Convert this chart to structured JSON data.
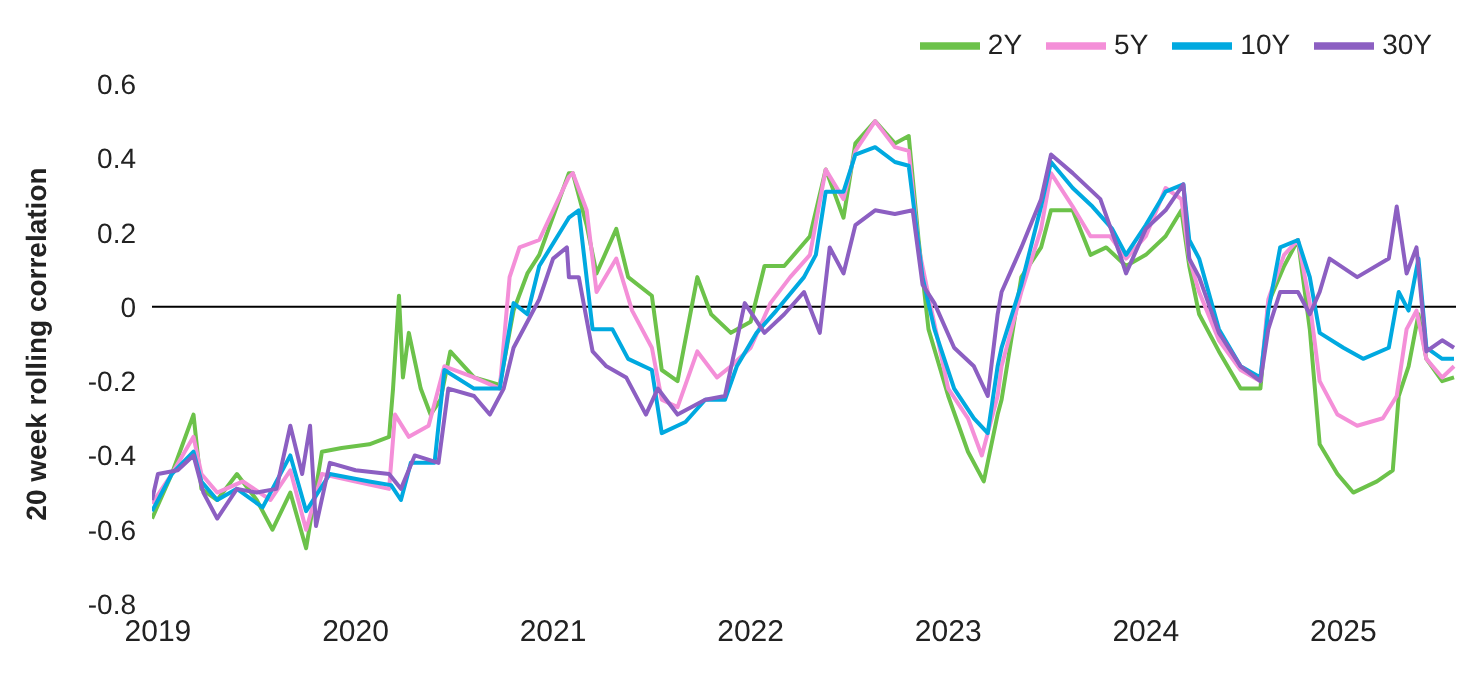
{
  "chart_data": {
    "type": "line",
    "ylabel": "20 week rolling correlation",
    "xlim": [
      2018.97,
      2025.57
    ],
    "xticks": [
      2019,
      2020,
      2021,
      2022,
      2023,
      2024,
      2025
    ],
    "ylim": [
      -0.8,
      0.6
    ],
    "yticks": [
      -0.8,
      -0.6,
      -0.4,
      -0.2,
      0,
      0.2,
      0.4,
      0.6
    ],
    "grid": false,
    "legend": "top right",
    "marker": "none",
    "line_style": "solid",
    "ref_lines": [
      {
        "axis": "y",
        "value": 0,
        "color": "#000000"
      }
    ],
    "series": [
      {
        "name": "2Y",
        "color": "#6cc24a",
        "x": [
          2018.97,
          2019.07,
          2019.18,
          2019.22,
          2019.3,
          2019.4,
          2019.5,
          2019.58,
          2019.67,
          2019.75,
          2019.83,
          2019.93,
          2020.07,
          2020.17,
          2020.19,
          2020.22,
          2020.24,
          2020.27,
          2020.33,
          2020.38,
          2020.43,
          2020.48,
          2020.6,
          2020.73,
          2020.8,
          2020.87,
          2020.93,
          2021.08,
          2021.1,
          2021.17,
          2021.22,
          2021.32,
          2021.38,
          2021.5,
          2021.55,
          2021.63,
          2021.73,
          2021.8,
          2021.9,
          2022.0,
          2022.07,
          2022.17,
          2022.3,
          2022.38,
          2022.47,
          2022.53,
          2022.63,
          2022.73,
          2022.8,
          2022.85,
          2022.9,
          2023.0,
          2023.1,
          2023.18,
          2023.25,
          2023.27,
          2023.37,
          2023.47,
          2023.52,
          2023.63,
          2023.72,
          2023.8,
          2023.9,
          2024.0,
          2024.1,
          2024.18,
          2024.22,
          2024.27,
          2024.37,
          2024.48,
          2024.58,
          2024.62,
          2024.7,
          2024.77,
          2024.83,
          2024.88,
          2024.97,
          2025.05,
          2025.17,
          2025.25,
          2025.28,
          2025.33,
          2025.38,
          2025.42,
          2025.5,
          2025.56
        ],
        "values": [
          -0.57,
          -0.45,
          -0.29,
          -0.49,
          -0.52,
          -0.45,
          -0.52,
          -0.6,
          -0.5,
          -0.65,
          -0.39,
          -0.38,
          -0.37,
          -0.35,
          -0.22,
          0.03,
          -0.19,
          -0.07,
          -0.22,
          -0.29,
          -0.25,
          -0.12,
          -0.19,
          -0.21,
          -0.01,
          0.09,
          0.14,
          0.36,
          0.36,
          0.22,
          0.09,
          0.21,
          0.08,
          0.03,
          -0.17,
          -0.2,
          0.08,
          -0.02,
          -0.07,
          -0.04,
          0.11,
          0.11,
          0.19,
          0.37,
          0.24,
          0.44,
          0.5,
          0.44,
          0.46,
          0.18,
          -0.06,
          -0.24,
          -0.39,
          -0.47,
          -0.29,
          -0.25,
          0.08,
          0.16,
          0.26,
          0.26,
          0.14,
          0.16,
          0.11,
          0.14,
          0.19,
          0.26,
          0.11,
          -0.02,
          -0.12,
          -0.22,
          -0.22,
          0.01,
          0.11,
          0.18,
          -0.06,
          -0.37,
          -0.45,
          -0.5,
          -0.47,
          -0.44,
          -0.24,
          -0.16,
          -0.02,
          -0.14,
          -0.2,
          -0.19
        ]
      },
      {
        "name": "5Y",
        "color": "#f48fd8",
        "x": [
          2018.97,
          2019.07,
          2019.18,
          2019.22,
          2019.3,
          2019.43,
          2019.57,
          2019.67,
          2019.75,
          2019.83,
          2020.0,
          2020.17,
          2020.2,
          2020.27,
          2020.37,
          2020.45,
          2020.6,
          2020.73,
          2020.78,
          2020.83,
          2020.93,
          2021.08,
          2021.1,
          2021.17,
          2021.22,
          2021.32,
          2021.4,
          2021.5,
          2021.55,
          2021.63,
          2021.73,
          2021.83,
          2021.9,
          2022.0,
          2022.1,
          2022.2,
          2022.3,
          2022.38,
          2022.47,
          2022.53,
          2022.63,
          2022.73,
          2022.8,
          2022.85,
          2022.92,
          2023.0,
          2023.1,
          2023.17,
          2023.25,
          2023.27,
          2023.37,
          2023.47,
          2023.52,
          2023.63,
          2023.72,
          2023.82,
          2023.9,
          2024.0,
          2024.1,
          2024.18,
          2024.22,
          2024.27,
          2024.37,
          2024.48,
          2024.58,
          2024.62,
          2024.7,
          2024.77,
          2024.83,
          2024.88,
          2024.97,
          2025.07,
          2025.2,
          2025.27,
          2025.32,
          2025.37,
          2025.42,
          2025.5,
          2025.56
        ],
        "values": [
          -0.53,
          -0.45,
          -0.35,
          -0.45,
          -0.5,
          -0.47,
          -0.52,
          -0.44,
          -0.6,
          -0.45,
          -0.47,
          -0.49,
          -0.29,
          -0.35,
          -0.32,
          -0.16,
          -0.19,
          -0.22,
          0.08,
          0.16,
          0.18,
          0.35,
          0.36,
          0.26,
          0.04,
          0.13,
          -0.01,
          -0.11,
          -0.25,
          -0.27,
          -0.12,
          -0.19,
          -0.16,
          -0.11,
          0.01,
          0.08,
          0.14,
          0.37,
          0.29,
          0.42,
          0.5,
          0.43,
          0.42,
          0.16,
          -0.02,
          -0.22,
          -0.3,
          -0.4,
          -0.24,
          -0.16,
          0.04,
          0.21,
          0.36,
          0.27,
          0.19,
          0.19,
          0.13,
          0.19,
          0.32,
          0.29,
          0.13,
          0.04,
          -0.09,
          -0.17,
          -0.2,
          0.02,
          0.14,
          0.18,
          0.01,
          -0.2,
          -0.29,
          -0.32,
          -0.3,
          -0.24,
          -0.06,
          -0.01,
          -0.14,
          -0.19,
          -0.16
        ]
      },
      {
        "name": "10Y",
        "color": "#00a9e0",
        "x": [
          2018.97,
          2019.07,
          2019.18,
          2019.22,
          2019.3,
          2019.4,
          2019.53,
          2019.67,
          2019.75,
          2019.87,
          2020.07,
          2020.18,
          2020.23,
          2020.28,
          2020.4,
          2020.45,
          2020.6,
          2020.73,
          2020.8,
          2020.87,
          2020.93,
          2021.08,
          2021.13,
          2021.2,
          2021.3,
          2021.38,
          2021.5,
          2021.55,
          2021.67,
          2021.77,
          2021.87,
          2021.93,
          2022.03,
          2022.13,
          2022.27,
          2022.33,
          2022.38,
          2022.47,
          2022.53,
          2022.63,
          2022.73,
          2022.8,
          2022.87,
          2022.93,
          2023.03,
          2023.13,
          2023.2,
          2023.25,
          2023.27,
          2023.37,
          2023.47,
          2023.52,
          2023.63,
          2023.73,
          2023.83,
          2023.9,
          2024.0,
          2024.1,
          2024.19,
          2024.22,
          2024.27,
          2024.37,
          2024.48,
          2024.58,
          2024.62,
          2024.68,
          2024.77,
          2024.83,
          2024.88,
          2025.0,
          2025.1,
          2025.23,
          2025.28,
          2025.33,
          2025.38,
          2025.42,
          2025.5,
          2025.56
        ],
        "values": [
          -0.55,
          -0.45,
          -0.39,
          -0.47,
          -0.52,
          -0.49,
          -0.54,
          -0.4,
          -0.55,
          -0.45,
          -0.47,
          -0.48,
          -0.52,
          -0.42,
          -0.42,
          -0.17,
          -0.22,
          -0.22,
          0.01,
          -0.02,
          0.11,
          0.24,
          0.26,
          -0.06,
          -0.06,
          -0.14,
          -0.17,
          -0.34,
          -0.31,
          -0.25,
          -0.25,
          -0.16,
          -0.07,
          -0.01,
          0.08,
          0.14,
          0.31,
          0.31,
          0.41,
          0.43,
          0.39,
          0.38,
          0.08,
          -0.06,
          -0.22,
          -0.3,
          -0.34,
          -0.16,
          -0.11,
          0.06,
          0.27,
          0.39,
          0.32,
          0.27,
          0.21,
          0.14,
          0.22,
          0.31,
          0.33,
          0.18,
          0.13,
          -0.06,
          -0.16,
          -0.19,
          -0.01,
          0.16,
          0.18,
          0.08,
          -0.07,
          -0.11,
          -0.14,
          -0.11,
          0.04,
          -0.01,
          0.13,
          -0.11,
          -0.14,
          -0.14
        ]
      },
      {
        "name": "30Y",
        "color": "#8c5fc2",
        "x": [
          2018.97,
          2019.0,
          2019.1,
          2019.18,
          2019.23,
          2019.3,
          2019.4,
          2019.5,
          2019.6,
          2019.67,
          2019.73,
          2019.77,
          2019.8,
          2019.87,
          2020.0,
          2020.17,
          2020.23,
          2020.3,
          2020.42,
          2020.47,
          2020.6,
          2020.68,
          2020.75,
          2020.8,
          2020.87,
          2020.93,
          2021.0,
          2021.07,
          2021.08,
          2021.13,
          2021.2,
          2021.27,
          2021.37,
          2021.47,
          2021.53,
          2021.63,
          2021.77,
          2021.87,
          2021.97,
          2022.07,
          2022.17,
          2022.27,
          2022.35,
          2022.4,
          2022.47,
          2022.53,
          2022.63,
          2022.73,
          2022.82,
          2022.87,
          2022.93,
          2023.03,
          2023.13,
          2023.2,
          2023.25,
          2023.27,
          2023.37,
          2023.47,
          2023.52,
          2023.63,
          2023.77,
          2023.87,
          2023.9,
          2024.0,
          2024.1,
          2024.19,
          2024.22,
          2024.27,
          2024.37,
          2024.48,
          2024.58,
          2024.62,
          2024.68,
          2024.77,
          2024.83,
          2024.88,
          2024.93,
          2025.07,
          2025.23,
          2025.27,
          2025.32,
          2025.37,
          2025.42,
          2025.5,
          2025.56
        ],
        "values": [
          -0.52,
          -0.45,
          -0.44,
          -0.4,
          -0.5,
          -0.57,
          -0.49,
          -0.5,
          -0.49,
          -0.32,
          -0.45,
          -0.32,
          -0.59,
          -0.42,
          -0.44,
          -0.45,
          -0.49,
          -0.4,
          -0.42,
          -0.22,
          -0.24,
          -0.29,
          -0.22,
          -0.11,
          -0.04,
          0.02,
          0.13,
          0.16,
          0.08,
          0.08,
          -0.12,
          -0.16,
          -0.19,
          -0.29,
          -0.22,
          -0.29,
          -0.25,
          -0.24,
          0.01,
          -0.07,
          -0.02,
          0.04,
          -0.07,
          0.16,
          0.09,
          0.22,
          0.26,
          0.25,
          0.26,
          0.06,
          0.01,
          -0.11,
          -0.16,
          -0.24,
          -0.02,
          0.04,
          0.16,
          0.29,
          0.41,
          0.36,
          0.29,
          0.14,
          0.09,
          0.21,
          0.26,
          0.33,
          0.13,
          0.08,
          -0.07,
          -0.16,
          -0.2,
          -0.06,
          0.04,
          0.04,
          -0.02,
          0.04,
          0.13,
          0.08,
          0.13,
          0.27,
          0.09,
          0.16,
          -0.12,
          -0.09,
          -0.11
        ]
      }
    ]
  }
}
